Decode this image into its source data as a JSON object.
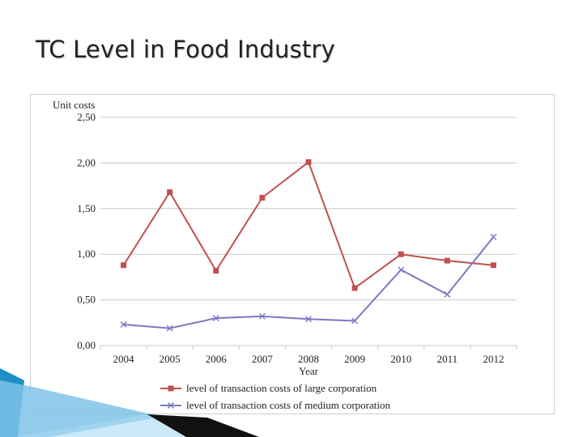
{
  "slide": {
    "title": "TC Level in Food Industry"
  },
  "colors": {
    "large": "#c0504d",
    "medium": "#7b78c4",
    "grid": "#c8c8c8",
    "accent_blue": "#1f8fc6"
  },
  "chart_data": {
    "type": "line",
    "title": "",
    "xlabel": "Year",
    "ylabel": "Unit costs",
    "categories": [
      "2004",
      "2005",
      "2006",
      "2007",
      "2008",
      "2009",
      "2010",
      "2011",
      "2012"
    ],
    "ylim": [
      0,
      2.5
    ],
    "yticks": [
      "0,00",
      "0,50",
      "1,00",
      "1,50",
      "2,00",
      "2,50"
    ],
    "grid": true,
    "legend_position": "bottom",
    "series": [
      {
        "name": "level of transaction costs of large corporation",
        "marker": "square",
        "color": "#c0504d",
        "values": [
          0.88,
          1.68,
          0.82,
          1.62,
          2.01,
          0.63,
          1.0,
          0.93,
          0.88
        ]
      },
      {
        "name": "level of transaction costs of medium corporation",
        "marker": "x",
        "color": "#7b78c4",
        "values": [
          0.23,
          0.19,
          0.3,
          0.32,
          0.29,
          0.27,
          0.83,
          0.56,
          1.19
        ]
      }
    ]
  }
}
